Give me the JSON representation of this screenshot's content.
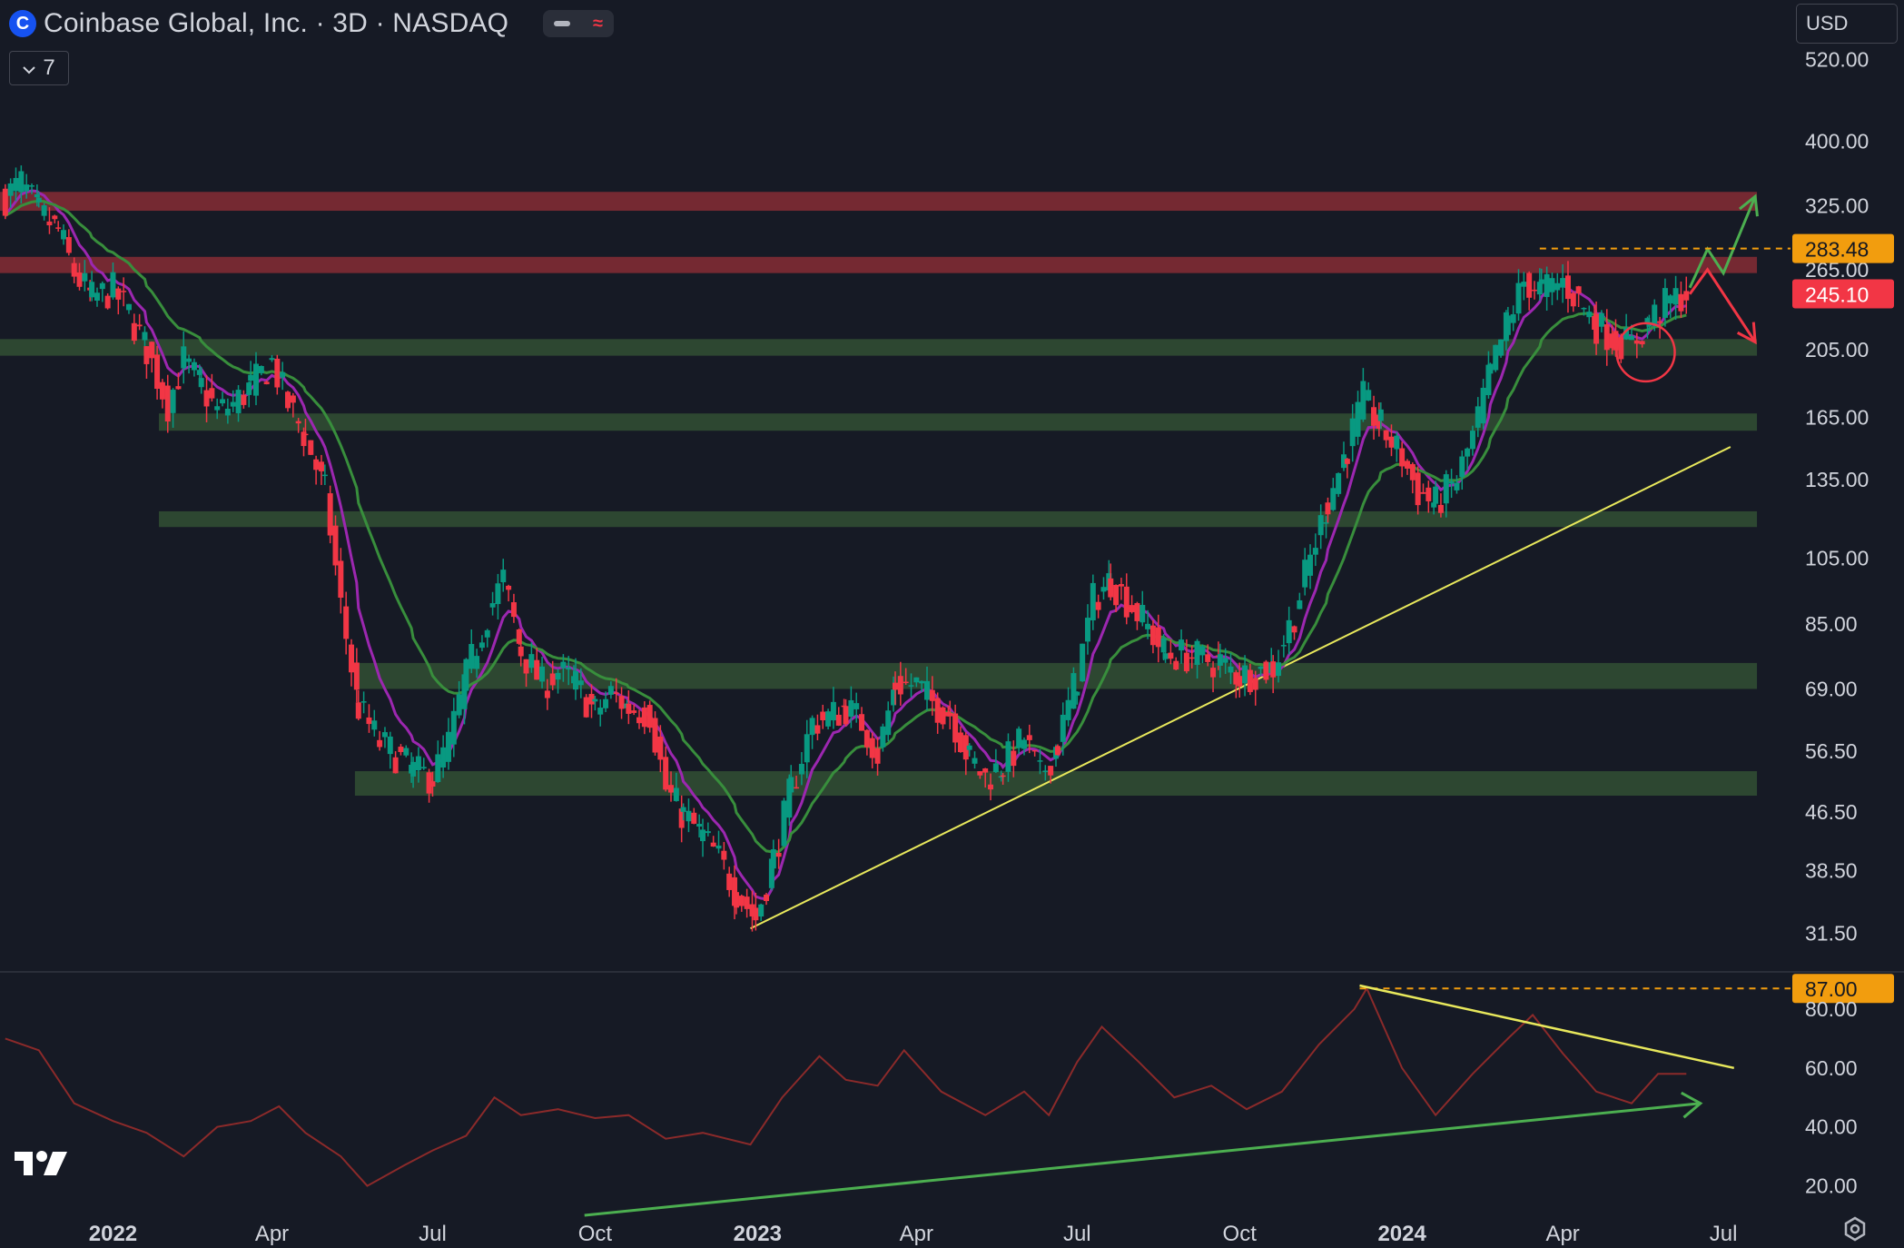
{
  "header": {
    "logo_letter": "C",
    "title": "Coinbase Global, Inc. · 3D · NASDAQ",
    "indicator_count": "7",
    "currency": "USD"
  },
  "icons": [
    "coinbase-logo-icon",
    "collapse-dash-icon",
    "wave-icon",
    "chevron-down-icon",
    "tradingview-logo-icon",
    "settings-gear-icon"
  ],
  "colors": {
    "background": "#161a25",
    "up_candle": "#089981",
    "down_candle": "#f23645",
    "ema_fast": "#9c27b0",
    "ema_slow": "#388e3c",
    "resistance_zone": "#7a2a33",
    "support_zone": "#2e4a32",
    "trendline": "#e8e85c",
    "rsi_line": "#8b2a2a",
    "price_tag_orange": "#f29d0e",
    "price_tag_red": "#f23645"
  },
  "chart_data": {
    "type": "candlestick",
    "scale": "log",
    "price_axis_ticks": [
      "520.00",
      "400.00",
      "325.00",
      "265.00",
      "205.00",
      "165.00",
      "135.00",
      "105.00",
      "85.00",
      "69.00",
      "56.50",
      "46.50",
      "38.50",
      "31.50"
    ],
    "time_axis_labels": [
      {
        "label": "2022",
        "bold": true,
        "date": "2022-01-01"
      },
      {
        "label": "Apr",
        "bold": false,
        "date": "2022-04-01"
      },
      {
        "label": "Jul",
        "bold": false,
        "date": "2022-07-01"
      },
      {
        "label": "Oct",
        "bold": false,
        "date": "2022-10-01"
      },
      {
        "label": "2023",
        "bold": true,
        "date": "2023-01-01"
      },
      {
        "label": "Apr",
        "bold": false,
        "date": "2023-04-01"
      },
      {
        "label": "Jul",
        "bold": false,
        "date": "2023-07-01"
      },
      {
        "label": "Oct",
        "bold": false,
        "date": "2023-10-01"
      },
      {
        "label": "2024",
        "bold": true,
        "date": "2024-01-01"
      },
      {
        "label": "Apr",
        "bold": false,
        "date": "2024-04-01"
      },
      {
        "label": "Jul",
        "bold": false,
        "date": "2024-07-01"
      }
    ],
    "x_range": [
      "2021-10-29",
      "2024-08-08"
    ],
    "y_range": [
      28,
      560
    ],
    "price_series": [
      {
        "date": "2021-11-01",
        "close": 335
      },
      {
        "date": "2021-11-10",
        "close": 350
      },
      {
        "date": "2021-11-20",
        "close": 318
      },
      {
        "date": "2021-12-01",
        "close": 300
      },
      {
        "date": "2021-12-10",
        "close": 262
      },
      {
        "date": "2021-12-20",
        "close": 242
      },
      {
        "date": "2022-01-01",
        "close": 248
      },
      {
        "date": "2022-01-10",
        "close": 230
      },
      {
        "date": "2022-01-20",
        "close": 205
      },
      {
        "date": "2022-02-01",
        "close": 172
      },
      {
        "date": "2022-02-10",
        "close": 198
      },
      {
        "date": "2022-02-20",
        "close": 182
      },
      {
        "date": "2022-03-01",
        "close": 168
      },
      {
        "date": "2022-03-10",
        "close": 172
      },
      {
        "date": "2022-03-20",
        "close": 182
      },
      {
        "date": "2022-04-01",
        "close": 197
      },
      {
        "date": "2022-04-10",
        "close": 172
      },
      {
        "date": "2022-04-20",
        "close": 155
      },
      {
        "date": "2022-05-01",
        "close": 130
      },
      {
        "date": "2022-05-10",
        "close": 90
      },
      {
        "date": "2022-05-20",
        "close": 65
      },
      {
        "date": "2022-06-01",
        "close": 58
      },
      {
        "date": "2022-06-10",
        "close": 56
      },
      {
        "date": "2022-06-20",
        "close": 53
      },
      {
        "date": "2022-07-01",
        "close": 52
      },
      {
        "date": "2022-07-10",
        "close": 58
      },
      {
        "date": "2022-07-20",
        "close": 72
      },
      {
        "date": "2022-08-01",
        "close": 88
      },
      {
        "date": "2022-08-10",
        "close": 98
      },
      {
        "date": "2022-08-20",
        "close": 78
      },
      {
        "date": "2022-09-01",
        "close": 70
      },
      {
        "date": "2022-09-10",
        "close": 73
      },
      {
        "date": "2022-09-20",
        "close": 70
      },
      {
        "date": "2022-10-01",
        "close": 64
      },
      {
        "date": "2022-10-10",
        "close": 68
      },
      {
        "date": "2022-10-20",
        "close": 65
      },
      {
        "date": "2022-11-01",
        "close": 64
      },
      {
        "date": "2022-11-10",
        "close": 50
      },
      {
        "date": "2022-11-20",
        "close": 46
      },
      {
        "date": "2022-12-01",
        "close": 43
      },
      {
        "date": "2022-12-10",
        "close": 40
      },
      {
        "date": "2022-12-20",
        "close": 36
      },
      {
        "date": "2022-12-31",
        "close": 33
      },
      {
        "date": "2023-01-10",
        "close": 40
      },
      {
        "date": "2023-01-20",
        "close": 50
      },
      {
        "date": "2023-02-01",
        "close": 62
      },
      {
        "date": "2023-02-10",
        "close": 63
      },
      {
        "date": "2023-02-20",
        "close": 65
      },
      {
        "date": "2023-03-01",
        "close": 62
      },
      {
        "date": "2023-03-10",
        "close": 56
      },
      {
        "date": "2023-03-20",
        "close": 70
      },
      {
        "date": "2023-04-01",
        "close": 70
      },
      {
        "date": "2023-04-10",
        "close": 66
      },
      {
        "date": "2023-04-20",
        "close": 64
      },
      {
        "date": "2023-05-01",
        "close": 55
      },
      {
        "date": "2023-05-10",
        "close": 52
      },
      {
        "date": "2023-05-20",
        "close": 54
      },
      {
        "date": "2023-06-01",
        "close": 59
      },
      {
        "date": "2023-06-10",
        "close": 52
      },
      {
        "date": "2023-06-20",
        "close": 58
      },
      {
        "date": "2023-07-01",
        "close": 72
      },
      {
        "date": "2023-07-10",
        "close": 92
      },
      {
        "date": "2023-07-20",
        "close": 98
      },
      {
        "date": "2023-08-01",
        "close": 90
      },
      {
        "date": "2023-08-10",
        "close": 84
      },
      {
        "date": "2023-08-20",
        "close": 77
      },
      {
        "date": "2023-09-01",
        "close": 77
      },
      {
        "date": "2023-09-10",
        "close": 76
      },
      {
        "date": "2023-09-20",
        "close": 75
      },
      {
        "date": "2023-10-01",
        "close": 72
      },
      {
        "date": "2023-10-10",
        "close": 73
      },
      {
        "date": "2023-10-20",
        "close": 74
      },
      {
        "date": "2023-11-01",
        "close": 88
      },
      {
        "date": "2023-11-10",
        "close": 105
      },
      {
        "date": "2023-11-20",
        "close": 126
      },
      {
        "date": "2023-12-01",
        "close": 150
      },
      {
        "date": "2023-12-10",
        "close": 175
      },
      {
        "date": "2023-12-20",
        "close": 160
      },
      {
        "date": "2024-01-01",
        "close": 145
      },
      {
        "date": "2024-01-10",
        "close": 130
      },
      {
        "date": "2024-01-20",
        "close": 125
      },
      {
        "date": "2024-02-01",
        "close": 135
      },
      {
        "date": "2024-02-10",
        "close": 155
      },
      {
        "date": "2024-02-20",
        "close": 190
      },
      {
        "date": "2024-03-01",
        "close": 225
      },
      {
        "date": "2024-03-10",
        "close": 255
      },
      {
        "date": "2024-03-20",
        "close": 248
      },
      {
        "date": "2024-04-01",
        "close": 255
      },
      {
        "date": "2024-04-10",
        "close": 240
      },
      {
        "date": "2024-04-20",
        "close": 222
      },
      {
        "date": "2024-05-01",
        "close": 212
      },
      {
        "date": "2024-05-10",
        "close": 208
      },
      {
        "date": "2024-05-20",
        "close": 225
      },
      {
        "date": "2024-06-01",
        "close": 240
      },
      {
        "date": "2024-06-10",
        "close": 245.1
      }
    ],
    "zones": [
      {
        "kind": "resistance",
        "low": 320,
        "high": 340,
        "from": "2021-10-29",
        "to": "2024-07-20"
      },
      {
        "kind": "resistance",
        "low": 262,
        "high": 276,
        "from": "2021-10-29",
        "to": "2024-07-20"
      },
      {
        "kind": "support",
        "low": 201,
        "high": 212,
        "from": "2021-10-29",
        "to": "2024-07-20"
      },
      {
        "kind": "support",
        "low": 158,
        "high": 167,
        "from": "2022-01-27",
        "to": "2024-07-20"
      },
      {
        "kind": "support",
        "low": 116,
        "high": 122,
        "from": "2022-01-27",
        "to": "2024-07-20"
      },
      {
        "kind": "support",
        "low": 69,
        "high": 75,
        "from": "2022-05-18",
        "to": "2024-07-20"
      },
      {
        "kind": "support",
        "low": 49,
        "high": 53,
        "from": "2022-05-18",
        "to": "2024-07-20"
      }
    ],
    "trendline": {
      "from": {
        "date": "2022-12-28",
        "price": 32
      },
      "to": {
        "date": "2024-07-05",
        "price": 150
      }
    },
    "projection_arrows": [
      {
        "direction": "up",
        "points": [
          {
            "date": "2024-06-12",
            "price": 250
          },
          {
            "date": "2024-06-22",
            "price": 283
          },
          {
            "date": "2024-07-01",
            "price": 262
          },
          {
            "date": "2024-07-19",
            "price": 335
          }
        ]
      },
      {
        "direction": "down",
        "points": [
          {
            "date": "2024-06-12",
            "price": 245
          },
          {
            "date": "2024-06-22",
            "price": 265
          },
          {
            "date": "2024-07-19",
            "price": 210
          }
        ]
      }
    ],
    "highlight_circle": {
      "date": "2024-05-18",
      "price": 208
    },
    "price_labels": [
      {
        "value": "283.48",
        "price": 283.48,
        "color": "#f29d0e",
        "dashed": true,
        "from": "2024-03-19"
      },
      {
        "value": "245.10",
        "price": 245.1,
        "color": "#f23645",
        "dashed": false
      }
    ],
    "rsi": {
      "axis_ticks": [
        "80.00",
        "60.00",
        "40.00",
        "20.00"
      ],
      "range": [
        10,
        92
      ],
      "values": [
        {
          "date": "2021-11-01",
          "v": 70
        },
        {
          "date": "2021-11-20",
          "v": 66
        },
        {
          "date": "2021-12-10",
          "v": 48
        },
        {
          "date": "2022-01-01",
          "v": 42
        },
        {
          "date": "2022-01-20",
          "v": 38
        },
        {
          "date": "2022-02-10",
          "v": 30
        },
        {
          "date": "2022-03-01",
          "v": 40
        },
        {
          "date": "2022-03-20",
          "v": 42
        },
        {
          "date": "2022-04-05",
          "v": 47
        },
        {
          "date": "2022-04-20",
          "v": 38
        },
        {
          "date": "2022-05-10",
          "v": 30
        },
        {
          "date": "2022-05-25",
          "v": 20
        },
        {
          "date": "2022-06-15",
          "v": 27
        },
        {
          "date": "2022-07-01",
          "v": 32
        },
        {
          "date": "2022-07-20",
          "v": 37
        },
        {
          "date": "2022-08-05",
          "v": 50
        },
        {
          "date": "2022-08-20",
          "v": 44
        },
        {
          "date": "2022-09-10",
          "v": 46
        },
        {
          "date": "2022-10-01",
          "v": 43
        },
        {
          "date": "2022-10-20",
          "v": 44
        },
        {
          "date": "2022-11-10",
          "v": 36
        },
        {
          "date": "2022-12-01",
          "v": 38
        },
        {
          "date": "2022-12-28",
          "v": 34
        },
        {
          "date": "2023-01-15",
          "v": 50
        },
        {
          "date": "2023-02-05",
          "v": 64
        },
        {
          "date": "2023-02-20",
          "v": 56
        },
        {
          "date": "2023-03-10",
          "v": 54
        },
        {
          "date": "2023-03-25",
          "v": 66
        },
        {
          "date": "2023-04-15",
          "v": 52
        },
        {
          "date": "2023-05-10",
          "v": 44
        },
        {
          "date": "2023-06-01",
          "v": 52
        },
        {
          "date": "2023-06-15",
          "v": 44
        },
        {
          "date": "2023-07-01",
          "v": 62
        },
        {
          "date": "2023-07-15",
          "v": 74
        },
        {
          "date": "2023-08-05",
          "v": 62
        },
        {
          "date": "2023-08-25",
          "v": 50
        },
        {
          "date": "2023-09-15",
          "v": 54
        },
        {
          "date": "2023-10-05",
          "v": 46
        },
        {
          "date": "2023-10-25",
          "v": 52
        },
        {
          "date": "2023-11-15",
          "v": 68
        },
        {
          "date": "2023-12-05",
          "v": 80
        },
        {
          "date": "2023-12-12",
          "v": 87
        },
        {
          "date": "2024-01-01",
          "v": 60
        },
        {
          "date": "2024-01-20",
          "v": 44
        },
        {
          "date": "2024-02-10",
          "v": 58
        },
        {
          "date": "2024-03-01",
          "v": 70
        },
        {
          "date": "2024-03-15",
          "v": 78
        },
        {
          "date": "2024-04-01",
          "v": 65
        },
        {
          "date": "2024-04-20",
          "v": 52
        },
        {
          "date": "2024-05-10",
          "v": 48
        },
        {
          "date": "2024-05-25",
          "v": 58
        },
        {
          "date": "2024-06-10",
          "v": 58
        }
      ],
      "label": {
        "value": "87.00",
        "level": 87,
        "color": "#f29d0e"
      },
      "resistance_line": {
        "from": {
          "date": "2023-12-08",
          "v": 88
        },
        "to": {
          "date": "2024-07-07",
          "v": 60
        }
      },
      "support_arrow": {
        "from": {
          "date": "2022-09-25",
          "v": 10
        },
        "to": {
          "date": "2024-06-18",
          "v": 48
        }
      }
    }
  }
}
